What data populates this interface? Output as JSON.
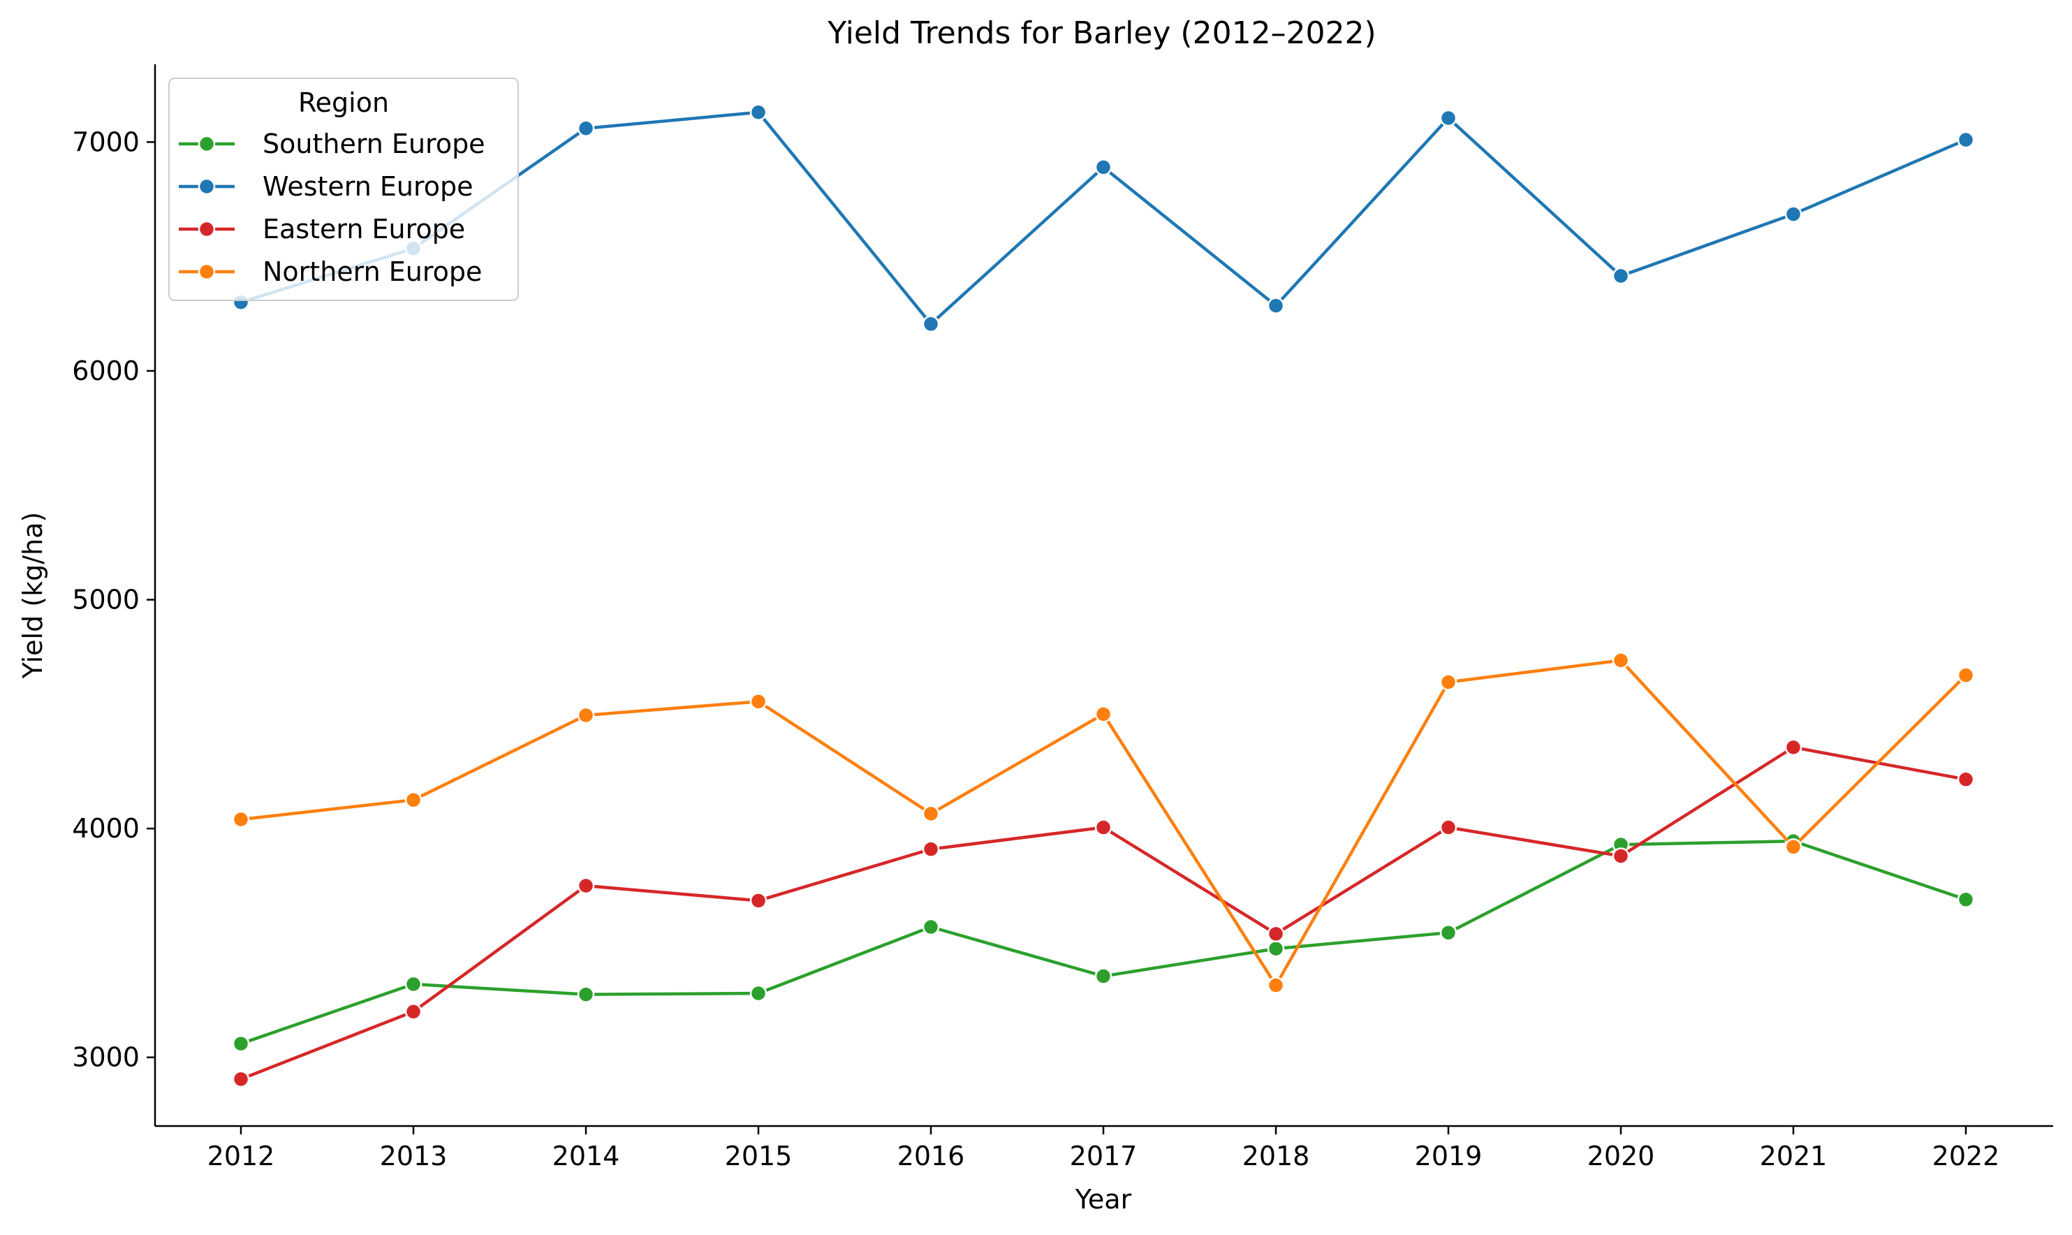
{
  "chart_data": {
    "type": "line",
    "title": "Yield Trends for Barley (2012–2022)",
    "xlabel": "Year",
    "ylabel": "Yield (kg/ha)",
    "x": [
      2012,
      2013,
      2014,
      2015,
      2016,
      2017,
      2018,
      2019,
      2020,
      2021,
      2022
    ],
    "ylim": [
      2700,
      7340
    ],
    "yticks": [
      3000,
      4000,
      5000,
      6000,
      7000
    ],
    "grid": false,
    "legend": {
      "title": "Region",
      "placement": "upper-left"
    },
    "series": [
      {
        "name": "Southern Europe",
        "color": "#2ca02c",
        "values": [
          3060,
          3320,
          3275,
          3280,
          3570,
          3355,
          3475,
          3545,
          3930,
          3945,
          3690
        ]
      },
      {
        "name": "Western Europe",
        "color": "#1f77b4",
        "values": [
          6300,
          6535,
          7060,
          7130,
          6205,
          6890,
          6285,
          7105,
          6415,
          6685,
          7010
        ]
      },
      {
        "name": "Eastern Europe",
        "color": "#d62728",
        "values": [
          2905,
          3200,
          3750,
          3685,
          3910,
          4005,
          3540,
          4005,
          3880,
          4355,
          4215
        ]
      },
      {
        "name": "Northern Europe",
        "color": "#ff7f0e",
        "values": [
          4040,
          4125,
          4495,
          4555,
          4065,
          4500,
          3315,
          4640,
          4735,
          3920,
          4670
        ]
      }
    ]
  }
}
